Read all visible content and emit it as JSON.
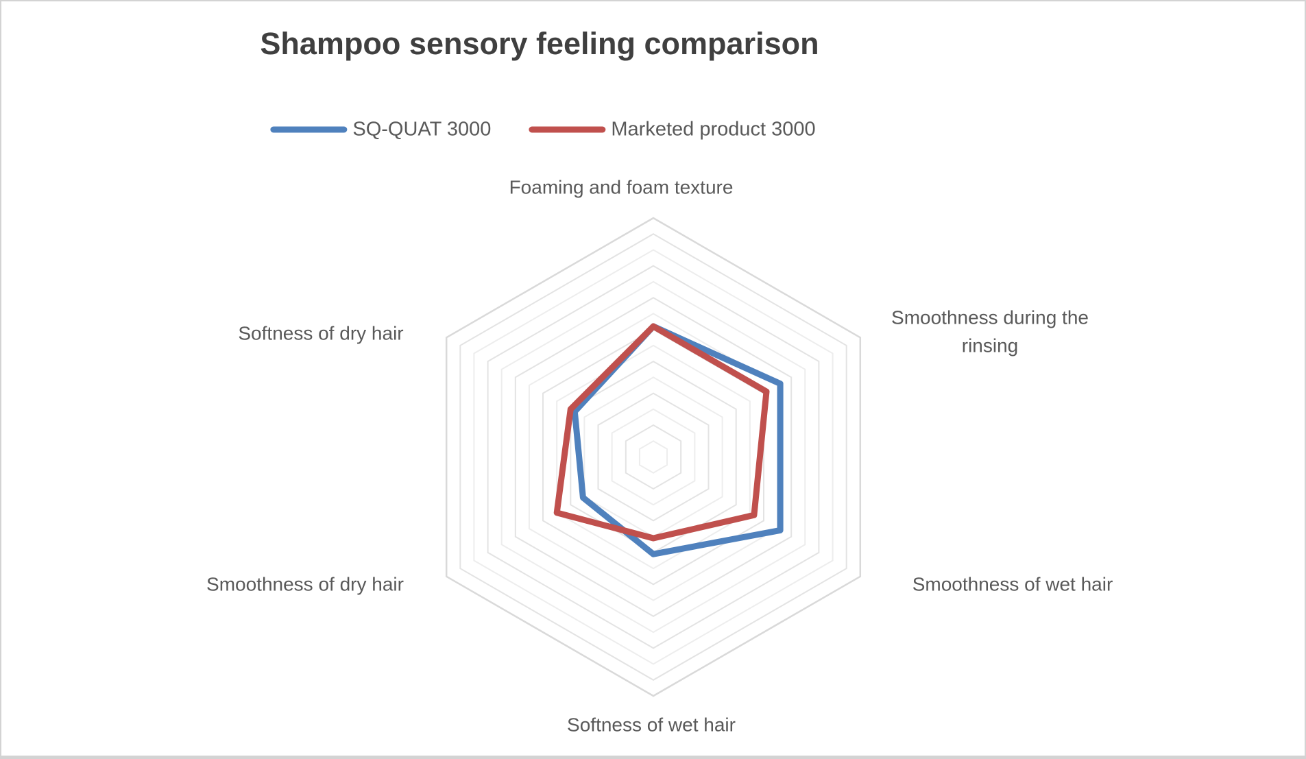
{
  "page": {
    "background_color": "#ffffff",
    "border_color": "#d3d3d3"
  },
  "title": {
    "text": "Shampoo sensory feeling comparison",
    "color": "#3f3f3f"
  },
  "legend": {
    "position": "top",
    "text_color": "#595959",
    "items": [
      {
        "label": "SQ-QUAT 3000",
        "color": "#4f81bd"
      },
      {
        "label": "Marketed product 3000",
        "color": "#c0504d"
      }
    ]
  },
  "chart_data": {
    "type": "radar",
    "title": "Shampoo sensory feeling comparison",
    "categories": [
      "Foaming and foam texture",
      "Smoothness during the rinsing",
      "Smoothness of wet hair",
      "Softness of wet hair",
      "Smoothness of dry hair",
      "Softness of dry hair"
    ],
    "series": [
      {
        "name": "SQ-QUAT 3000",
        "color": "#4f81bd",
        "values": [
          8.2,
          9.2,
          9.2,
          6.1,
          5.1,
          5.7
        ]
      },
      {
        "name": "Marketed product 3000",
        "color": "#c0504d",
        "values": [
          8.2,
          8.2,
          7.3,
          5.1,
          7.0,
          6.0
        ]
      }
    ],
    "axis": {
      "min": 0,
      "max": 15,
      "ring_count": 15,
      "tick_labels_visible": false,
      "shape": "hexagon"
    },
    "grid": {
      "ring_color_outer": "#d9d9d9",
      "ring_color_a": "#ededed",
      "ring_color_b": "#e3e3e3"
    },
    "legend_position": "top",
    "label_color": "#595959"
  }
}
